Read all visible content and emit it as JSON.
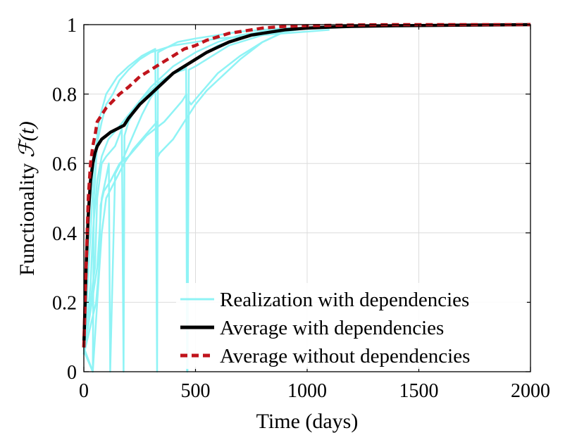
{
  "chart_data": {
    "type": "line",
    "xlabel": "Time (days)",
    "ylabel_text": "Functionality ",
    "ylabel_math": "ℱ(t)",
    "xlim": [
      0,
      2000
    ],
    "ylim": [
      0,
      1
    ],
    "xticks": [
      0,
      500,
      1000,
      1500,
      2000
    ],
    "yticks": [
      0,
      0.2,
      0.4,
      0.6,
      0.8,
      1
    ],
    "xtick_labels": [
      "0",
      "500",
      "1000",
      "1500",
      "2000"
    ],
    "ytick_labels": [
      "0",
      "0.2",
      "0.4",
      "0.6",
      "0.8",
      "1"
    ],
    "grid": true,
    "legend_placement": "bottom-right",
    "legend": [
      {
        "label": "Realization with dependencies",
        "color": "#8ff3f5",
        "style": "solid"
      },
      {
        "label": "Average with dependencies",
        "color": "#000000",
        "style": "solid"
      },
      {
        "label": "Average without dependencies",
        "color": "#c0141c",
        "style": "dashed"
      }
    ],
    "series": [
      {
        "name": "Realization with dependencies",
        "color": "#8ff3f5",
        "realizations": [
          {
            "x": [
              0,
              40,
              45,
              60,
              80,
              100,
              130,
              160,
              200,
              250,
              300,
              400,
              500,
              600,
              700,
              800,
              900,
              1000,
              1100
            ],
            "y": [
              0.07,
              0.0,
              0.5,
              0.66,
              0.72,
              0.77,
              0.8,
              0.84,
              0.87,
              0.9,
              0.92,
              0.94,
              0.95,
              0.96,
              0.965,
              0.97,
              0.975,
              0.98,
              0.985
            ]
          },
          {
            "x": [
              0,
              30,
              45,
              70,
              100,
              150,
              200,
              260,
              320,
              328,
              332,
              360,
              420,
              500,
              600,
              700,
              800,
              900,
              1000,
              1100
            ],
            "y": [
              0.05,
              0.4,
              0.6,
              0.73,
              0.8,
              0.85,
              0.88,
              0.91,
              0.93,
              0.0,
              0.92,
              0.93,
              0.95,
              0.96,
              0.97,
              0.98,
              0.985,
              0.99,
              0.99,
              0.99
            ]
          },
          {
            "x": [
              0,
              50,
              60,
              80,
              100,
              140,
              170,
              178,
              182,
              200,
              250,
              300,
              350,
              400,
              450,
              500,
              600,
              700,
              800,
              900,
              1000
            ],
            "y": [
              0.06,
              0.3,
              0.5,
              0.6,
              0.62,
              0.65,
              0.7,
              0.0,
              0.68,
              0.72,
              0.78,
              0.82,
              0.85,
              0.88,
              0.9,
              0.92,
              0.95,
              0.97,
              0.98,
              0.99,
              0.99
            ]
          },
          {
            "x": [
              0,
              60,
              80,
              100,
              112,
              118,
              140,
              180,
              220,
              260,
              300,
              350,
              400,
              450,
              500,
              600,
              700,
              800,
              900,
              1000
            ],
            "y": [
              0.05,
              0.3,
              0.5,
              0.56,
              0.6,
              0.0,
              0.57,
              0.62,
              0.68,
              0.74,
              0.79,
              0.83,
              0.86,
              0.88,
              0.9,
              0.94,
              0.96,
              0.98,
              0.99,
              0.99
            ]
          },
          {
            "x": [
              0,
              55,
              68,
              75,
              90,
              120,
              160,
              200,
              240,
              280,
              320,
              360,
              400,
              440,
              460,
              464,
              470,
              480,
              520,
              560,
              600,
              700,
              800,
              900,
              1000
            ],
            "y": [
              0.05,
              0.2,
              0.3,
              0.48,
              0.52,
              0.55,
              0.6,
              0.62,
              0.65,
              0.68,
              0.7,
              0.72,
              0.75,
              0.78,
              0.8,
              0.0,
              0.78,
              0.77,
              0.8,
              0.83,
              0.86,
              0.91,
              0.95,
              0.98,
              0.99
            ]
          },
          {
            "x": [
              0,
              40,
              60,
              80,
              100,
              140,
              180,
              220,
              260,
              300,
              328,
              332,
              340,
              400,
              450,
              500,
              550,
              600,
              700,
              800,
              900,
              1000
            ],
            "y": [
              0.06,
              0.0,
              0.2,
              0.4,
              0.5,
              0.55,
              0.6,
              0.64,
              0.67,
              0.7,
              0.72,
              0.62,
              0.63,
              0.67,
              0.72,
              0.77,
              0.81,
              0.84,
              0.9,
              0.95,
              0.98,
              0.99
            ]
          },
          {
            "x": [
              0,
              30,
              40,
              60,
              80,
              110,
              150,
              200,
              250,
              300,
              350,
              400,
              450,
              458,
              462,
              470,
              500,
              550,
              600,
              650,
              700,
              800,
              900,
              1000
            ],
            "y": [
              0.05,
              0.25,
              0.4,
              0.55,
              0.62,
              0.67,
              0.7,
              0.74,
              0.78,
              0.81,
              0.84,
              0.86,
              0.87,
              0.88,
              0.0,
              0.87,
              0.88,
              0.9,
              0.92,
              0.94,
              0.95,
              0.97,
              0.98,
              0.99
            ]
          }
        ]
      },
      {
        "name": "Average with dependencies",
        "color": "#000000",
        "x": [
          0,
          10,
          20,
          30,
          40,
          50,
          60,
          80,
          100,
          120,
          150,
          180,
          200,
          250,
          300,
          350,
          400,
          450,
          500,
          550,
          600,
          650,
          700,
          750,
          800,
          900,
          1000,
          1100,
          1200,
          1400,
          1600,
          1800,
          2000
        ],
        "y": [
          0.07,
          0.3,
          0.45,
          0.55,
          0.6,
          0.63,
          0.65,
          0.67,
          0.68,
          0.69,
          0.7,
          0.71,
          0.73,
          0.77,
          0.8,
          0.83,
          0.86,
          0.88,
          0.9,
          0.92,
          0.935,
          0.95,
          0.96,
          0.97,
          0.975,
          0.985,
          0.99,
          0.993,
          0.995,
          0.997,
          0.998,
          0.999,
          1.0
        ]
      },
      {
        "name": "Average without dependencies",
        "color": "#c0141c",
        "x": [
          0,
          10,
          20,
          30,
          40,
          50,
          60,
          80,
          100,
          130,
          160,
          200,
          250,
          300,
          350,
          400,
          450,
          500,
          550,
          600,
          650,
          700,
          800,
          900,
          1000,
          1100,
          1200,
          1400,
          1600,
          1800,
          2000
        ],
        "y": [
          0.07,
          0.3,
          0.5,
          0.6,
          0.65,
          0.68,
          0.72,
          0.74,
          0.76,
          0.78,
          0.8,
          0.82,
          0.85,
          0.87,
          0.89,
          0.91,
          0.93,
          0.94,
          0.955,
          0.965,
          0.975,
          0.98,
          0.99,
          0.995,
          0.997,
          0.998,
          0.999,
          1.0,
          1.0,
          1.0,
          1.0
        ]
      }
    ]
  }
}
